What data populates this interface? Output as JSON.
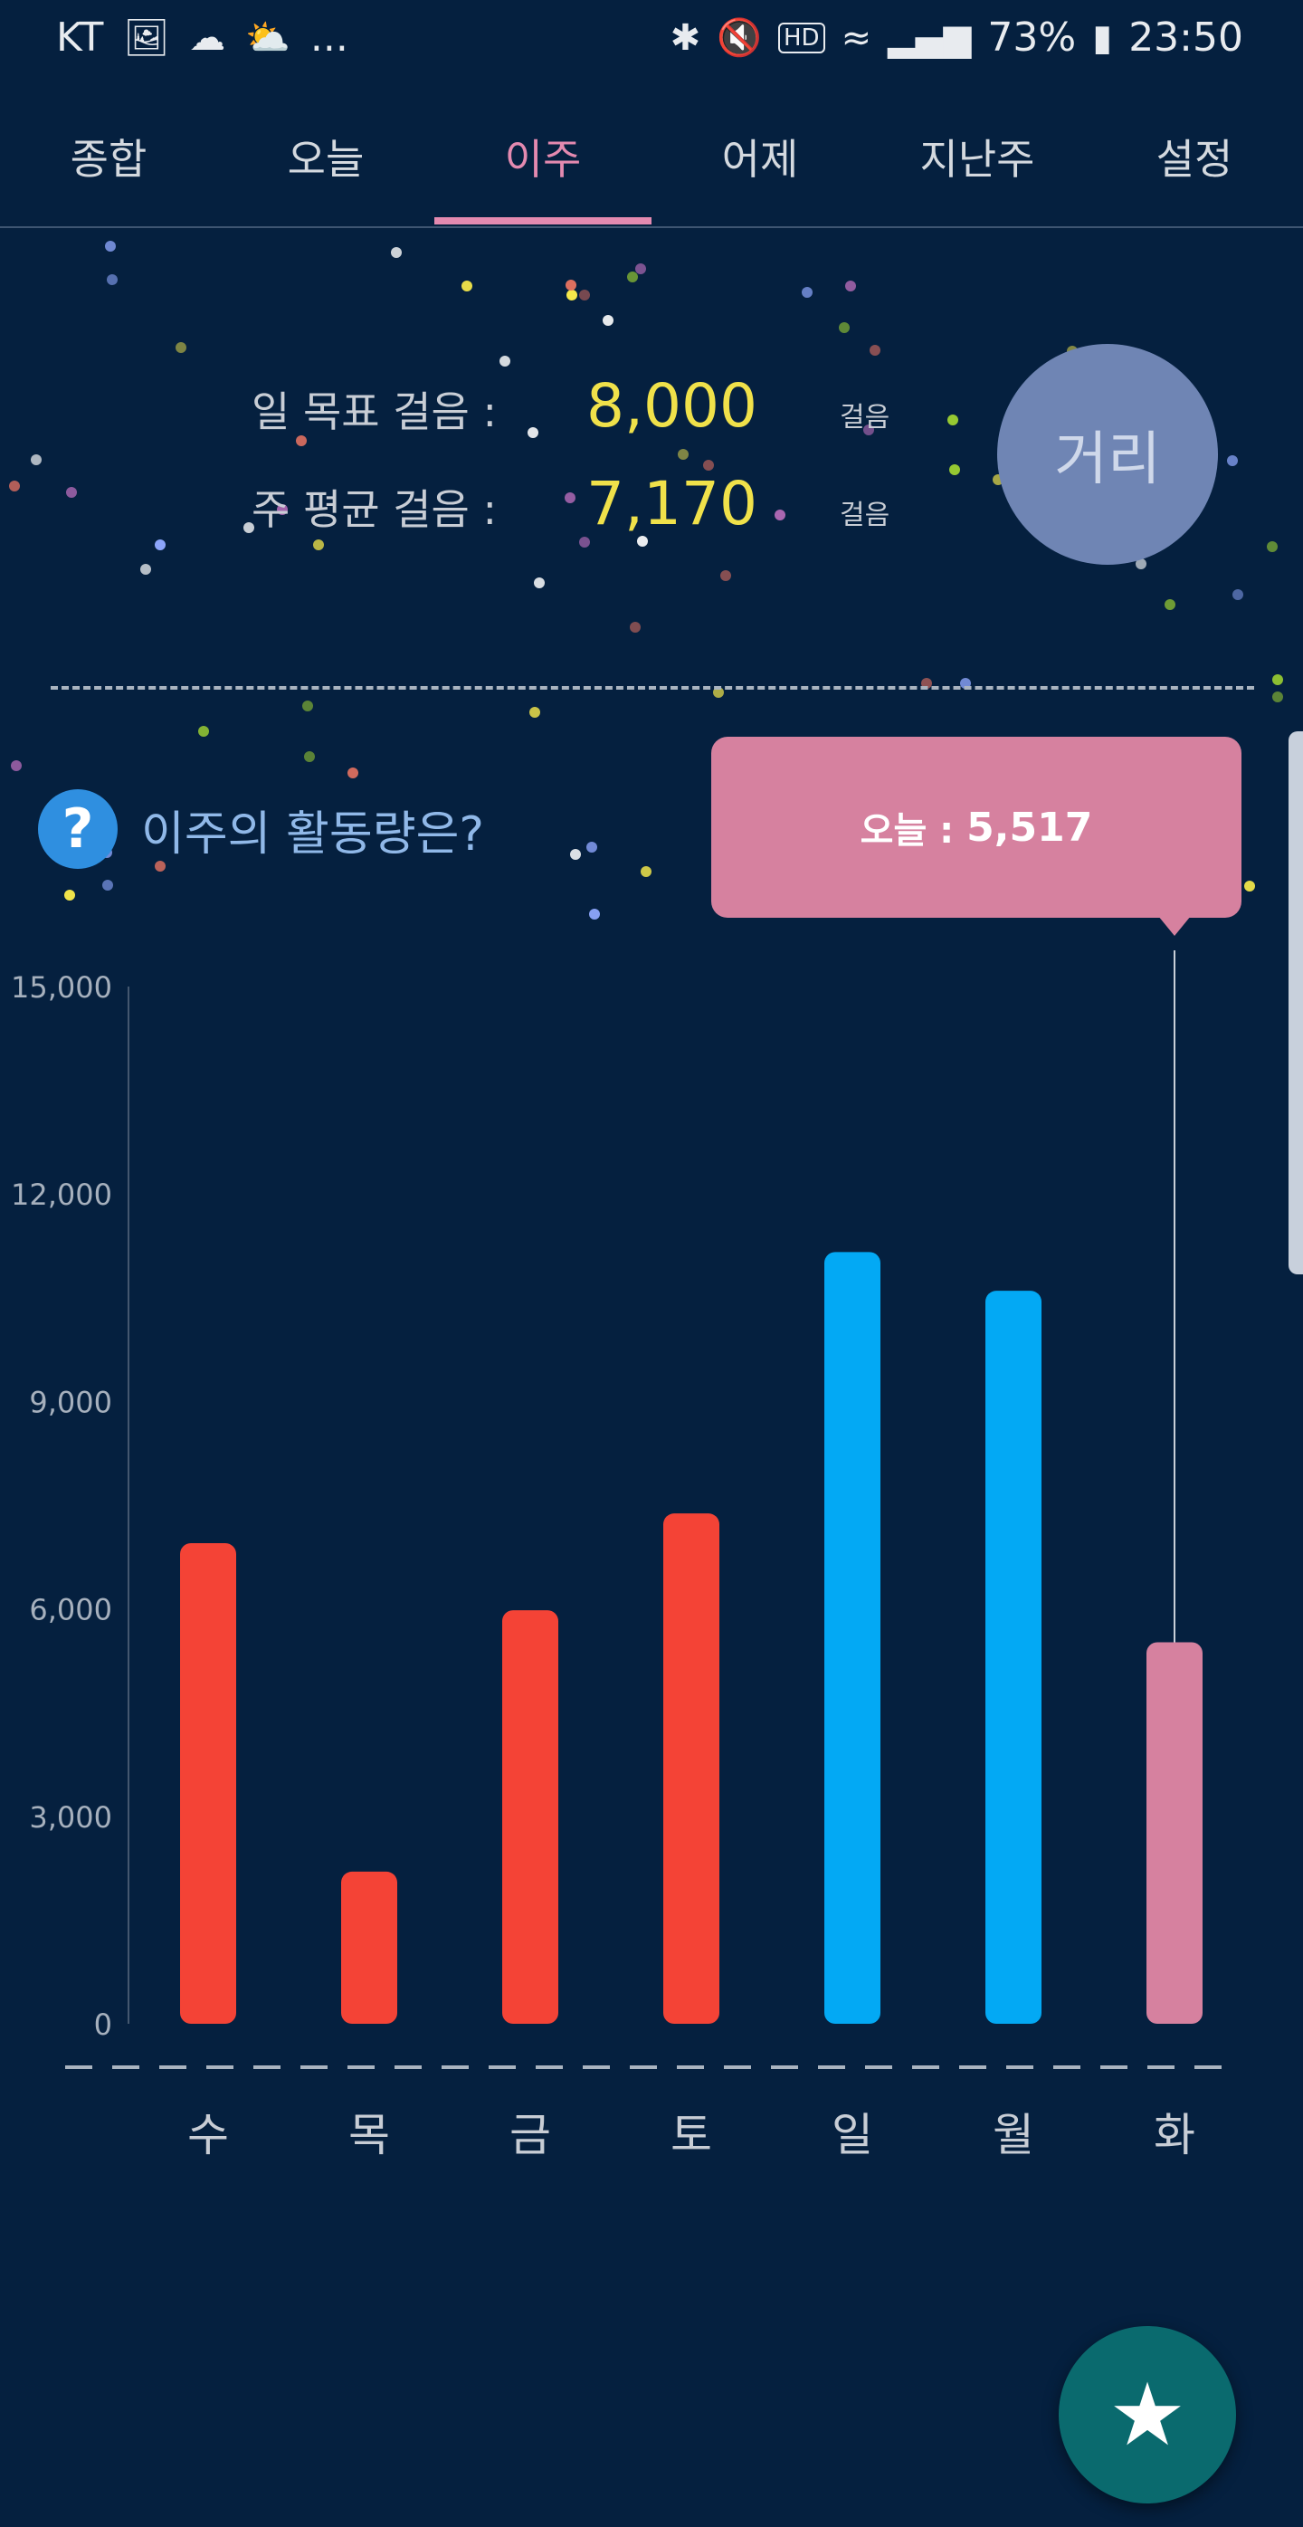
{
  "status_bar": {
    "carrier": "KT",
    "notification_icons": [
      "image-icon",
      "cloud-icon",
      "cloud-settings-icon"
    ],
    "more": "...",
    "system_icons": [
      "bluetooth-icon",
      "mute-icon",
      "hd-icon",
      "wifi-icon",
      "signal-icon",
      "battery-icon"
    ],
    "hd_label": "HD",
    "battery_percent": "73%",
    "time": "23:50"
  },
  "tabs": [
    {
      "label": "종합"
    },
    {
      "label": "오늘"
    },
    {
      "label": "이주"
    },
    {
      "label": "어제"
    },
    {
      "label": "지난주"
    },
    {
      "label": "설정"
    }
  ],
  "active_tab": "이주",
  "goal": {
    "daily_label": "일 목표 걸음 :",
    "daily_value": "8,000",
    "daily_unit": "걸음",
    "weekly_label": "주 평균 걸음 :",
    "weekly_value": "7,170",
    "weekly_unit": "걸음"
  },
  "distance_button": "거리",
  "question": {
    "icon": "?",
    "text": "이주의 활동량은?"
  },
  "tooltip": {
    "label": "오늘 :",
    "value": "5,517"
  },
  "chart_data": {
    "type": "bar",
    "categories": [
      "수",
      "목",
      "금",
      "토",
      "일",
      "월",
      "화"
    ],
    "values": [
      6950,
      2200,
      5980,
      7380,
      11160,
      10600,
      5517
    ],
    "bar_colors": [
      "#f44336",
      "#f44336",
      "#f44336",
      "#f44336",
      "#03a9f4",
      "#03a9f4",
      "#d6819f"
    ],
    "ylim": [
      0,
      15000
    ],
    "yticks": [
      "0",
      "3,000",
      "6,000",
      "9,000",
      "12,000",
      "15,000"
    ],
    "ytick_values": [
      0,
      3000,
      6000,
      9000,
      12000,
      15000
    ],
    "highlight_index": 6,
    "grid": false
  },
  "fab_icon": "star-icon",
  "colors": {
    "background": "#05203f",
    "accent": "#e48ab0",
    "goal_value": "#f0e14a",
    "distance_button": "#6f85b4",
    "fab": "#0a6a6e"
  }
}
